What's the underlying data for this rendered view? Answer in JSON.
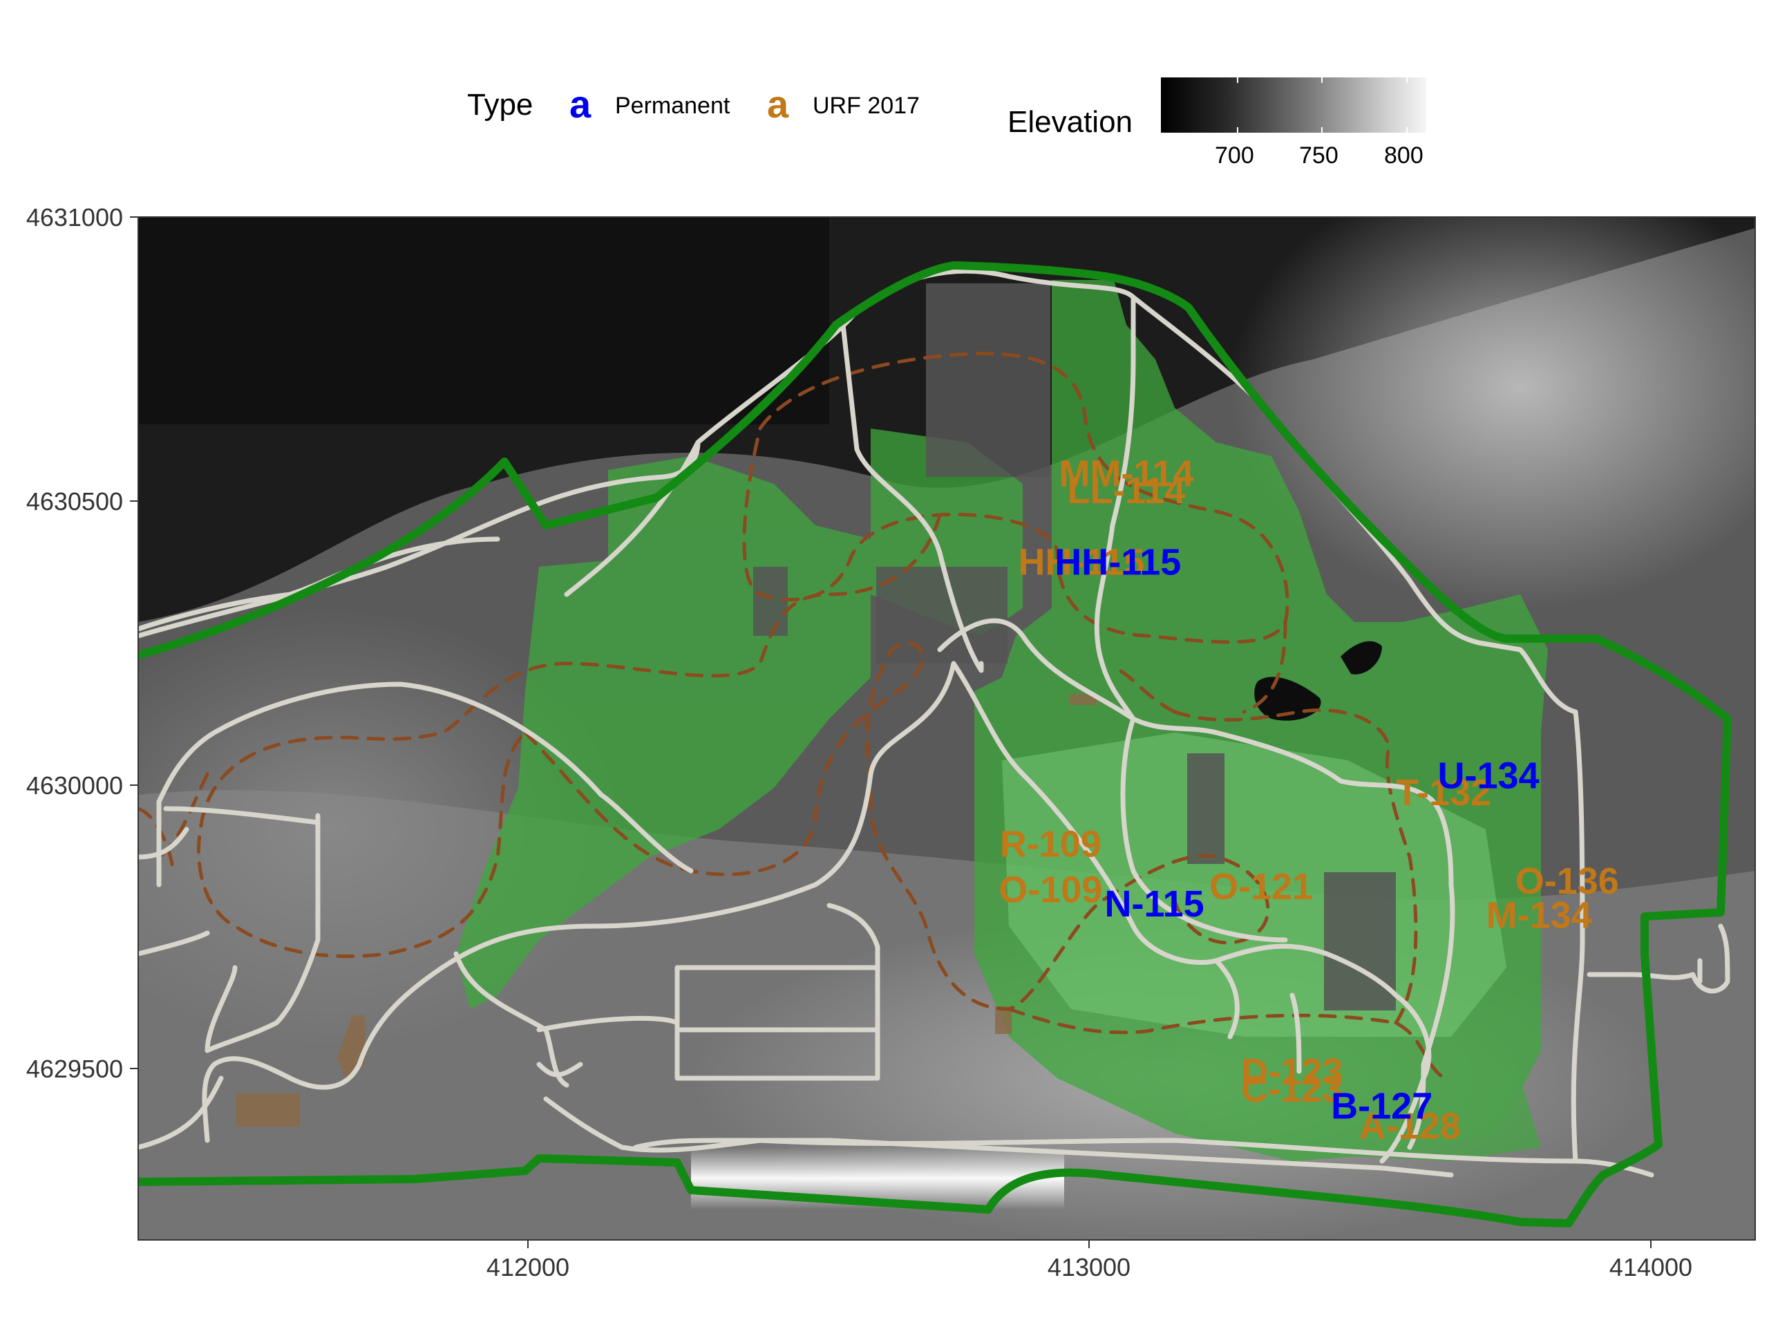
{
  "legend": {
    "type_title": "Type",
    "key_glyph": "a",
    "types": [
      {
        "name": "Permanent",
        "color": "#0000ee"
      },
      {
        "name": "URF 2017",
        "color": "#c07818"
      }
    ],
    "elevation_title": "Elevation",
    "elevation_ticks": [
      "700",
      "750",
      "800"
    ]
  },
  "axes": {
    "x_ticks": [
      "412000",
      "413000",
      "414000"
    ],
    "y_ticks": [
      "4631000",
      "4630500",
      "4630000",
      "4629500"
    ],
    "xlim": [
      411320,
      414200
    ],
    "ylim": [
      4629205,
      4631000
    ]
  },
  "colors": {
    "permanent": "#0000ee",
    "urf": "#c07818",
    "boundary": "#138a13",
    "road": "#d8d6cc",
    "trail": "#8b4a1f",
    "vegetation": "#3ea83e"
  },
  "sites": [
    {
      "label": "MM-114",
      "type": "URF 2017",
      "x": 413080,
      "y": 4630545
    },
    {
      "label": "LL-114",
      "type": "URF 2017",
      "x": 413080,
      "y": 4630515
    },
    {
      "label": "HH-115",
      "type": "URF 2017",
      "x": 413000,
      "y": 4630390
    },
    {
      "label": "HH-115",
      "type": "Permanent",
      "x": 413065,
      "y": 4630390
    },
    {
      "label": "U-134",
      "type": "Permanent",
      "x": 413725,
      "y": 4630015
    },
    {
      "label": "T-132",
      "type": "URF 2017",
      "x": 413645,
      "y": 4629985
    },
    {
      "label": "R-109",
      "type": "URF 2017",
      "x": 412945,
      "y": 4629895
    },
    {
      "label": "O-109",
      "type": "URF 2017",
      "x": 412945,
      "y": 4629815
    },
    {
      "label": "N-115",
      "type": "Permanent",
      "x": 413130,
      "y": 4629790
    },
    {
      "label": "O-121",
      "type": "URF 2017",
      "x": 413320,
      "y": 4629820
    },
    {
      "label": "O-136",
      "type": "URF 2017",
      "x": 413865,
      "y": 4629830
    },
    {
      "label": "M-134",
      "type": "URF 2017",
      "x": 413815,
      "y": 4629770
    },
    {
      "label": "D-123",
      "type": "URF 2017",
      "x": 413375,
      "y": 4629495
    },
    {
      "label": "C-123",
      "type": "URF 2017",
      "x": 413375,
      "y": 4629465
    },
    {
      "label": "B-127",
      "type": "Permanent",
      "x": 413535,
      "y": 4629435
    },
    {
      "label": "A-128",
      "type": "URF 2017",
      "x": 413585,
      "y": 4629400
    }
  ]
}
